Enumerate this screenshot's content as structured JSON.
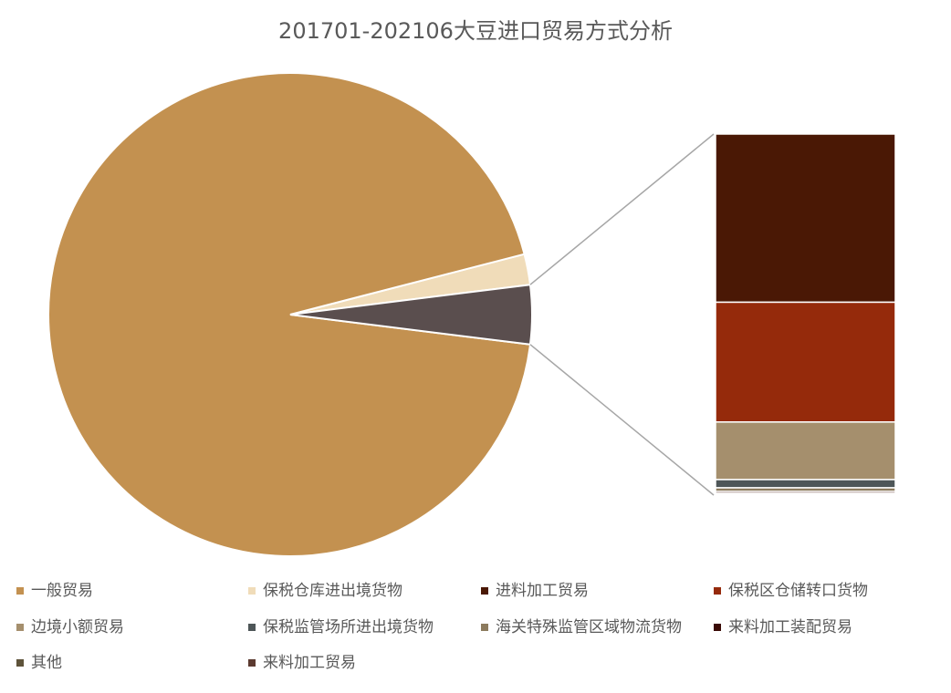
{
  "chart_data": {
    "type": "bar-of-pie",
    "title": "201701-202106大豆进口贸易方式分析",
    "secondary_count": 8,
    "series": [
      {
        "name": "一般贸易",
        "color": "#C39150",
        "values": [
          94.0
        ]
      },
      {
        "name": "保税仓库进出境货物",
        "color": "#F0DCB9",
        "values": [
          2.05
        ]
      },
      {
        "name": "进料加工贸易",
        "color": "#4A1805",
        "values": [
          1.84
        ]
      },
      {
        "name": "保税区仓储转口货物",
        "color": "#952A0B",
        "values": [
          1.31
        ]
      },
      {
        "name": "边境小额贸易",
        "color": "#A58F6D",
        "values": [
          0.63
        ]
      },
      {
        "name": "保税监管场所进出境货物",
        "color": "#4E5658",
        "values": [
          0.09
        ]
      },
      {
        "name": "海关特殊监管区域物流货物",
        "color": "#8C7B5E",
        "values": [
          0.04
        ]
      },
      {
        "name": "来料加工装配贸易",
        "color": "#3A0A05",
        "values": [
          0.02
        ]
      },
      {
        "name": "其他",
        "color": "#5E533A",
        "values": [
          0.01
        ]
      },
      {
        "name": "来料加工贸易",
        "color": "#5C3A30",
        "values": [
          0.01
        ]
      }
    ]
  }
}
